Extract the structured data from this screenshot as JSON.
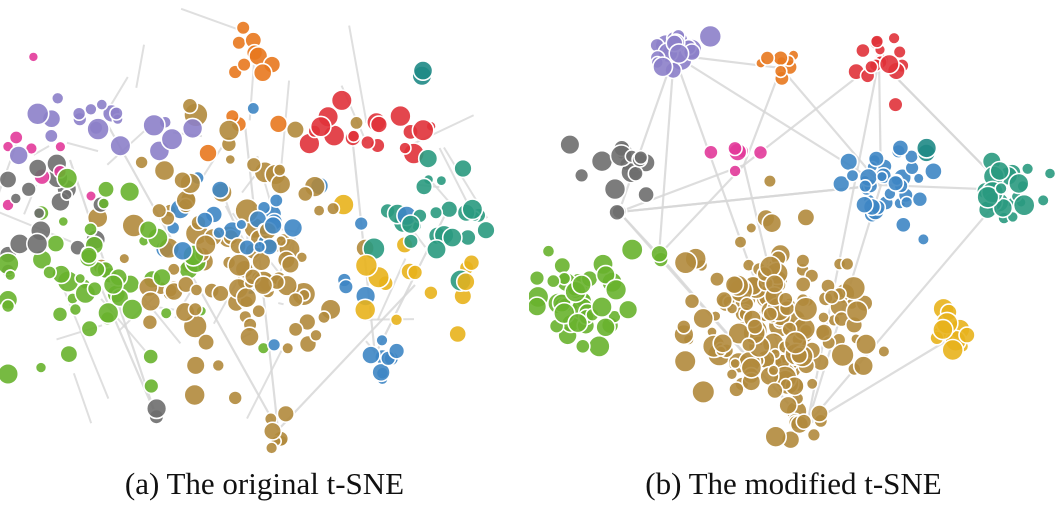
{
  "colors": {
    "purple": "#8c7fc9",
    "orange": "#e8781e",
    "red": "#e0323a",
    "pink": "#e23a9a",
    "teal": "#2a9a80",
    "darkteal": "#1f8a86",
    "gray": "#6e6e6e",
    "green": "#68b22e",
    "blue": "#3e86c4",
    "brown": "#b18a3c",
    "yellow": "#e8b21c",
    "edge": "#d8d8d8",
    "ring": "#ffffff"
  },
  "chart_data": [
    {
      "type": "scatter",
      "layout": "t-SNE projection with edges",
      "caption": "(a) The original t-SNE",
      "clusters": [
        "purple",
        "orange",
        "red",
        "pink",
        "teal",
        "gray",
        "green",
        "blue",
        "brown",
        "yellow"
      ],
      "cluster_separation": "low"
    },
    {
      "type": "scatter",
      "layout": "modified t-SNE projection with edges",
      "caption": "(b) The modified t-SNE",
      "clusters": [
        "purple",
        "orange",
        "red",
        "pink",
        "teal",
        "gray",
        "green",
        "blue",
        "brown",
        "yellow"
      ],
      "cluster_separation": "high"
    }
  ]
}
